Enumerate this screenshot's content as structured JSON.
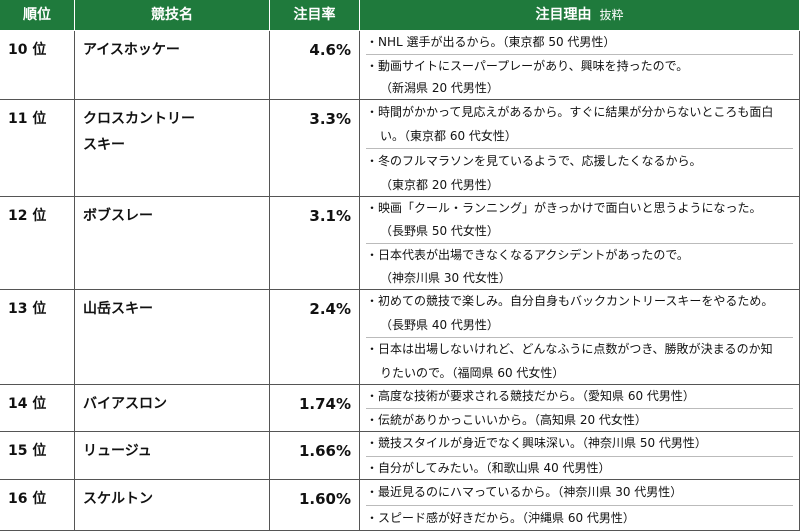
{
  "header": {
    "rank": "順位",
    "sport": "競技名",
    "rate": "注目率",
    "reason": "注目理由",
    "reason_note": "抜粋"
  },
  "table": {
    "rows": [
      {
        "rank": "10 位",
        "sport": [
          "アイスホッケー"
        ],
        "rate": "4.6%",
        "reasons": [
          [
            "・NHL 選手が出るから。（東京都 50 代男性）"
          ],
          [
            "・動画サイトにスーパープレーがあり、興味を持ったので。",
            "（新潟県 20 代男性）"
          ]
        ]
      },
      {
        "rank": "11 位",
        "sport": [
          "クロスカントリー",
          "スキー"
        ],
        "rate": "3.3%",
        "reasons": [
          [
            "・時間がかかって見応えがあるから。すぐに結果が分からないところも面白",
            "い。（東京都 60 代女性）"
          ],
          [
            "・冬のフルマラソンを見ているようで、応援したくなるから。",
            "（東京都 20 代男性）"
          ]
        ]
      },
      {
        "rank": "12 位",
        "sport": [
          "ボブスレー"
        ],
        "rate": "3.1%",
        "reasons": [
          [
            "・映画「クール・ランニング」がきっかけで面白いと思うようになった。",
            "（長野県 50 代女性）"
          ],
          [
            "・日本代表が出場できなくなるアクシデントがあったので。",
            "（神奈川県 30 代女性）"
          ]
        ]
      },
      {
        "rank": "13 位",
        "sport": [
          "山岳スキー"
        ],
        "rate": "2.4%",
        "reasons": [
          [
            "・初めての競技で楽しみ。自分自身もバックカントリースキーをやるため。",
            "（長野県 40 代男性）"
          ],
          [
            "・日本は出場しないけれど、どんなふうに点数がつき、勝敗が決まるのか知",
            "りたいので。（福岡県 60 代女性）"
          ]
        ]
      },
      {
        "rank": "14 位",
        "sport": [
          "バイアスロン"
        ],
        "rate": "1.74%",
        "reasons": [
          [
            "・高度な技術が要求される競技だから。（愛知県 60 代男性）"
          ],
          [
            "・伝統がありかっこいいから。（高知県 20 代女性）"
          ]
        ]
      },
      {
        "rank": "15 位",
        "sport": [
          "リュージュ"
        ],
        "rate": "1.66%",
        "reasons": [
          [
            "・競技スタイルが身近でなく興味深い。（神奈川県 50 代男性）"
          ],
          [
            "・自分がしてみたい。（和歌山県 40 代男性）"
          ]
        ]
      },
      {
        "rank": "16 位",
        "sport": [
          "スケルトン"
        ],
        "rate": "1.60%",
        "reasons": [
          [
            "・最近見るのにハマっているから。（神奈川県 30 代男性）"
          ],
          [
            "・スピード感が好きだから。（沖縄県 60 代男性）"
          ]
        ]
      }
    ]
  }
}
